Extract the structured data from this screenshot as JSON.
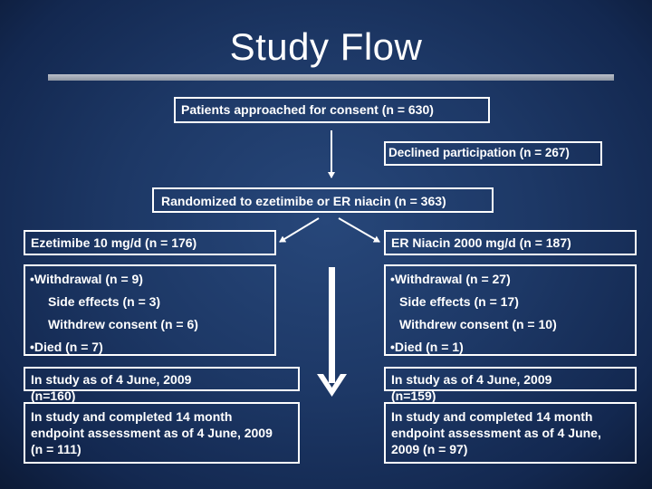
{
  "title": "Study Flow",
  "approached": "Patients  approached for consent  (n = 630)",
  "declined": "Declined participation (n = 267)",
  "randomized": "Randomized to ezetimibe or ER niacin (n = 363)",
  "ezetimibe": {
    "header": "Ezetimibe  10 mg/d (n = 176)",
    "withdrawal": "•Withdrawal (n = 9)",
    "side_effects": "Side effects (n = 3)",
    "withdrew_consent": "Withdrew consent (n = 6)",
    "died": "•Died (n = 7)",
    "in_study": "In study as of 4 June, 2009 (n=160)",
    "completed": "In study and completed 14 month endpoint assessment as of 4 June, 2009  (n = 111)"
  },
  "niacin": {
    "header": "ER Niacin  2000 mg/d (n = 187)",
    "withdrawal": "•Withdrawal (n = 27)",
    "side_effects": "Side effects (n = 17)",
    "withdrew_consent": "Withdrew consent (n = 10)",
    "died": "•Died (n = 1)",
    "in_study": "In study as of 4 June, 2009 (n=159)",
    "completed": "In study and completed 14 month endpoint assessment as of 4 June, 2009  (n = 97)"
  },
  "colors": {
    "background": "#1d3866",
    "box_border": "#ffffff",
    "text": "#ffffff",
    "rule": "#a8afbb"
  }
}
